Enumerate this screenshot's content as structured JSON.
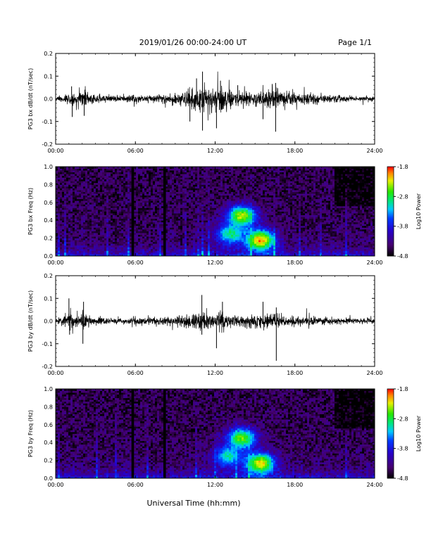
{
  "header": {
    "title": "2019/01/26  00:00-24:00 UT",
    "page": "Page 1/1"
  },
  "x_axis": {
    "label": "Universal Time (hh:mm)",
    "ticks": [
      "00:00",
      "06:00",
      "12:00",
      "18:00",
      "24:00"
    ]
  },
  "chart_data": [
    {
      "type": "line",
      "name": "bx-waveform",
      "ylabel": "PG3 bx dB/dt (nT/sec)",
      "xlim": [
        0,
        24
      ],
      "ylim": [
        -0.2,
        0.2
      ],
      "yticks": [
        "0.2",
        "0.1",
        "0.0",
        "-0.1",
        "-0.2"
      ],
      "series": [
        {
          "envelope_hours": [
            0,
            0.5,
            1.0,
            1.3,
            1.6,
            2.2,
            2.5,
            3,
            4,
            5,
            6,
            7,
            8,
            9,
            9.5,
            10,
            10.5,
            11,
            11.5,
            12,
            12.5,
            13,
            13.5,
            14,
            15,
            16,
            16.5,
            17,
            18,
            19,
            20,
            21,
            22,
            23,
            24
          ],
          "envelope_amp": [
            0.012,
            0.012,
            0.035,
            0.03,
            0.02,
            0.05,
            0.025,
            0.02,
            0.016,
            0.016,
            0.02,
            0.018,
            0.022,
            0.028,
            0.035,
            0.045,
            0.06,
            0.07,
            0.06,
            0.05,
            0.06,
            0.045,
            0.035,
            0.03,
            0.035,
            0.045,
            0.05,
            0.035,
            0.03,
            0.025,
            0.02,
            0.015,
            0.012,
            0.01,
            0.01
          ],
          "spikes": [
            [
              1.25,
              -0.08
            ],
            [
              2.15,
              -0.075
            ],
            [
              1.2,
              0.055
            ],
            [
              2.2,
              0.04
            ],
            [
              10.1,
              -0.1
            ],
            [
              10.6,
              0.09
            ],
            [
              11.05,
              0.12
            ],
            [
              11.05,
              -0.14
            ],
            [
              12.1,
              -0.13
            ],
            [
              12.4,
              0.08
            ],
            [
              15.6,
              -0.09
            ],
            [
              16.55,
              -0.145
            ],
            [
              16.55,
              0.07
            ],
            [
              13.7,
              0.06
            ]
          ]
        }
      ]
    },
    {
      "type": "heatmap",
      "name": "bx-spectrogram",
      "ylabel": "PG3 bx Freq (Hz)",
      "xlim": [
        0,
        24
      ],
      "ylim": [
        0,
        1
      ],
      "yticks": [
        "1.0",
        "0.8",
        "0.6",
        "0.4",
        "0.2",
        "0.0"
      ],
      "colorbar": {
        "label": "Log10 Power",
        "ticks": [
          "-1.8",
          "-2.8",
          "-3.8",
          "-4.8"
        ],
        "range": [
          -4.8,
          -1.8
        ]
      },
      "gaps_hours": [
        5.8,
        8.2
      ],
      "features": [
        {
          "center_hours": 14.0,
          "center_hz": 0.45,
          "level": -2.3
        },
        {
          "center_hours": 15.4,
          "center_hz": 0.18,
          "level": -2.0
        },
        {
          "center_hours": 13.2,
          "center_hz": 0.25,
          "level": -2.9
        }
      ]
    },
    {
      "type": "line",
      "name": "by-waveform",
      "ylabel": "PG3 by dB/dt (nT/sec)",
      "xlim": [
        0,
        24
      ],
      "ylim": [
        -0.2,
        0.2
      ],
      "yticks": [
        "0.2",
        "0.1",
        "0.0",
        "-0.1",
        "-0.2"
      ],
      "series": [
        {
          "envelope_hours": [
            0,
            0.5,
            1.0,
            1.3,
            1.6,
            2.2,
            2.5,
            3,
            4,
            5,
            6,
            7,
            8,
            9,
            9.5,
            10,
            10.5,
            11,
            11.5,
            12,
            12.5,
            13,
            13.5,
            14,
            15,
            16,
            16.5,
            17,
            18,
            19,
            20,
            21,
            22,
            23,
            24
          ],
          "envelope_amp": [
            0.015,
            0.02,
            0.03,
            0.04,
            0.02,
            0.045,
            0.025,
            0.02,
            0.016,
            0.015,
            0.018,
            0.016,
            0.02,
            0.024,
            0.03,
            0.035,
            0.04,
            0.045,
            0.04,
            0.035,
            0.045,
            0.035,
            0.03,
            0.025,
            0.028,
            0.035,
            0.04,
            0.03,
            0.025,
            0.02,
            0.018,
            0.015,
            0.013,
            0.012,
            0.012
          ],
          "spikes": [
            [
              1.0,
              0.1
            ],
            [
              1.05,
              -0.06
            ],
            [
              2.05,
              -0.1
            ],
            [
              2.1,
              0.085
            ],
            [
              11.0,
              0.115
            ],
            [
              11.0,
              -0.06
            ],
            [
              12.1,
              -0.12
            ],
            [
              12.55,
              0.085
            ],
            [
              15.6,
              0.085
            ],
            [
              16.6,
              -0.175
            ],
            [
              16.6,
              0.06
            ]
          ]
        }
      ]
    },
    {
      "type": "heatmap",
      "name": "by-spectrogram",
      "ylabel": "PG3 by Freq (Hz)",
      "xlim": [
        0,
        24
      ],
      "ylim": [
        0,
        1
      ],
      "yticks": [
        "1.0",
        "0.8",
        "0.6",
        "0.4",
        "0.2",
        "0.0"
      ],
      "colorbar": {
        "label": "Log10 Power",
        "ticks": [
          "-1.8",
          "-2.8",
          "-3.8",
          "-4.8"
        ],
        "range": [
          -4.8,
          -1.8
        ]
      },
      "gaps_hours": [
        5.8,
        8.2
      ],
      "features": [
        {
          "center_hours": 14.0,
          "center_hz": 0.45,
          "level": -2.5
        },
        {
          "center_hours": 15.4,
          "center_hz": 0.17,
          "level": -2.2
        },
        {
          "center_hours": 13.0,
          "center_hz": 0.25,
          "level": -3.0
        }
      ]
    }
  ]
}
